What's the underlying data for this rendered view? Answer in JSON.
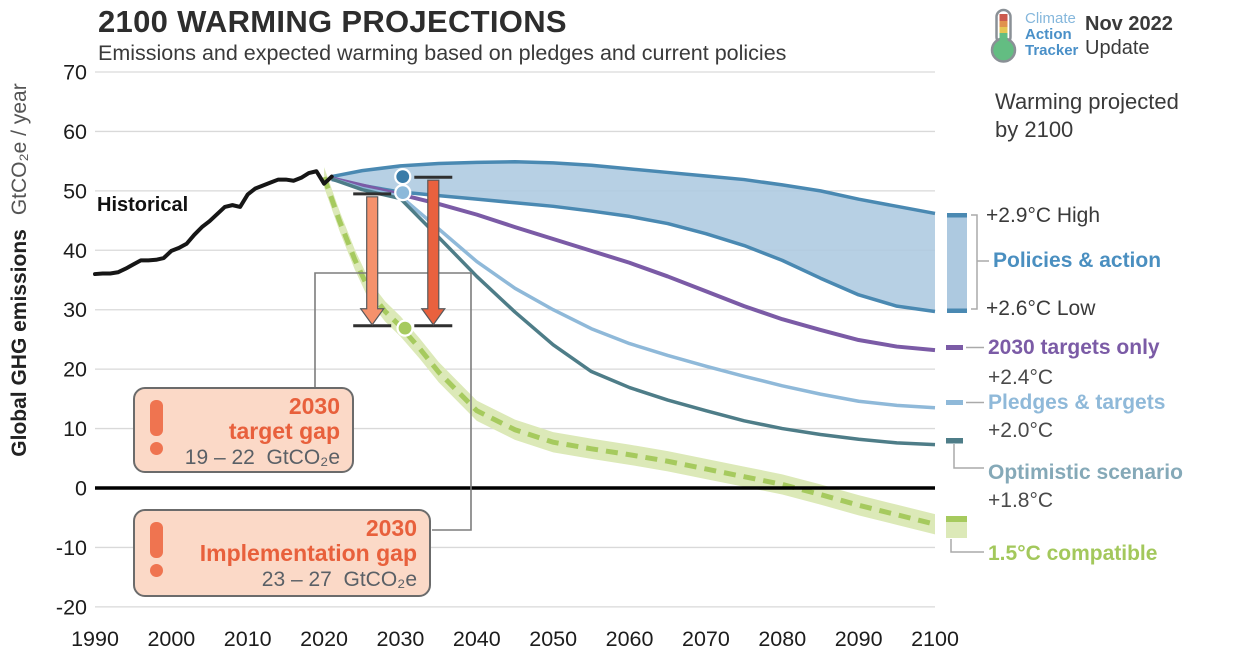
{
  "header": {
    "title": "2100 WARMING PROJECTIONS",
    "subtitle": "Emissions and expected warming based on pledges and current policies",
    "logo": {
      "line1": "Climate",
      "line2": "Action",
      "line3": "Tracker"
    },
    "update_line1": "Nov 2022",
    "update_line2": "Update"
  },
  "axes": {
    "y_label_bold": "Global GHG emissions",
    "y_label_unit": "GtCO₂e / year",
    "y_ticks": [
      70,
      60,
      50,
      40,
      30,
      20,
      10,
      0,
      -10,
      -20
    ],
    "x_ticks": [
      1990,
      2000,
      2010,
      2020,
      2030,
      2040,
      2050,
      2060,
      2070,
      2080,
      2090,
      2100
    ]
  },
  "plot_labels": {
    "historical": "Historical"
  },
  "annotations": {
    "target_gap": {
      "line1": "2030",
      "line2": "target gap",
      "value": "19 – 22  GtCO₂e"
    },
    "implementation_gap": {
      "line1": "2030",
      "line2": "Implementation gap",
      "value": "23 – 27  GtCO₂e"
    }
  },
  "legend": {
    "heading_line1": "Warming projected",
    "heading_line2": "by 2100",
    "high": "+2.9°C High",
    "policies": "Policies & action",
    "low": "+2.6°C Low",
    "targets2030": "2030 targets only",
    "targets2030_temp": "+2.4°C",
    "pledges": "Pledges & targets",
    "pledges_temp": "+2.0°C",
    "optimistic": "Optimistic scenario",
    "optimistic_temp": "+1.8°C",
    "compatible": "1.5°C compatible"
  },
  "colors": {
    "grid": "#d9d9d9",
    "zero_line": "#000000",
    "tick_text": "#1c1c1c",
    "historical": "#161616",
    "policies_band_fill": "#adc9e0",
    "policies_edge": "#4a89b2",
    "targets2030": "#7b5ba6",
    "pledges": "#8fb9d9",
    "optimistic": "#4e7d88",
    "green_line": "#a6ca5e",
    "green_band": "#dce9b8",
    "arrow_target": "#f5916c",
    "arrow_implementation": "#e9613e",
    "arrow_outline": "#58585a",
    "cap": "#2f2f2f",
    "connector": "#7d7d7d",
    "legend_gray": "#aaaaaa",
    "dot_policies_high": "#3a7ca8",
    "dot_policies_low": "#8cb9da",
    "dot_green": "#a6ca5e"
  },
  "chart_data": {
    "type": "line",
    "title": "2100 WARMING PROJECTIONS",
    "subtitle": "Emissions and expected warming based on pledges and current policies",
    "xlabel": "",
    "ylabel": "Global GHG emissions GtCO₂e / year",
    "xlim": [
      1990,
      2100
    ],
    "ylim": [
      -20,
      70
    ],
    "grid": true,
    "series": [
      {
        "name": "Historical",
        "role": "historical",
        "points": [
          [
            1990,
            36
          ],
          [
            1991,
            36.1
          ],
          [
            1992,
            36.1
          ],
          [
            1993,
            36.3
          ],
          [
            1994,
            36.9
          ],
          [
            1995,
            37.6
          ],
          [
            1996,
            38.3
          ],
          [
            1997,
            38.3
          ],
          [
            1998,
            38.4
          ],
          [
            1999,
            38.7
          ],
          [
            2000,
            39.9
          ],
          [
            2001,
            40.4
          ],
          [
            2002,
            41.1
          ],
          [
            2003,
            42.6
          ],
          [
            2004,
            43.9
          ],
          [
            2005,
            44.9
          ],
          [
            2006,
            46.1
          ],
          [
            2007,
            47.3
          ],
          [
            2008,
            47.6
          ],
          [
            2009,
            47.3
          ],
          [
            2010,
            49.4
          ],
          [
            2011,
            50.4
          ],
          [
            2012,
            50.9
          ],
          [
            2013,
            51.4
          ],
          [
            2014,
            51.9
          ],
          [
            2015,
            51.9
          ],
          [
            2016,
            51.7
          ],
          [
            2017,
            52.2
          ],
          [
            2018,
            53.0
          ],
          [
            2019,
            53.3
          ],
          [
            2020,
            51.2
          ],
          [
            2021,
            52.4
          ]
        ]
      },
      {
        "name": "Policies & action (high, +2.9°C)",
        "role": "band_high",
        "points": [
          [
            2021,
            52.4
          ],
          [
            2025,
            53.4
          ],
          [
            2030,
            54.2
          ],
          [
            2035,
            54.6
          ],
          [
            2040,
            54.8
          ],
          [
            2045,
            54.9
          ],
          [
            2050,
            54.7
          ],
          [
            2055,
            54.3
          ],
          [
            2060,
            53.7
          ],
          [
            2065,
            53.1
          ],
          [
            2070,
            52.5
          ],
          [
            2075,
            51.9
          ],
          [
            2080,
            51.0
          ],
          [
            2085,
            50.0
          ],
          [
            2090,
            48.6
          ],
          [
            2095,
            47.4
          ],
          [
            2100,
            46.2
          ]
        ]
      },
      {
        "name": "Policies & action (low, +2.6°C)",
        "role": "band_low",
        "points": [
          [
            2021,
            51.9
          ],
          [
            2025,
            50.9
          ],
          [
            2030,
            49.8
          ],
          [
            2035,
            49.2
          ],
          [
            2040,
            48.6
          ],
          [
            2045,
            48.0
          ],
          [
            2050,
            47.4
          ],
          [
            2055,
            46.6
          ],
          [
            2060,
            45.7
          ],
          [
            2065,
            44.5
          ],
          [
            2070,
            42.8
          ],
          [
            2075,
            40.8
          ],
          [
            2080,
            38.3
          ],
          [
            2085,
            35.3
          ],
          [
            2090,
            32.5
          ],
          [
            2095,
            30.6
          ],
          [
            2100,
            29.7
          ]
        ]
      },
      {
        "name": "2030 targets only (+2.4°C)",
        "role": "targets2030",
        "points": [
          [
            2021,
            52.1
          ],
          [
            2025,
            50.9
          ],
          [
            2030,
            49.4
          ],
          [
            2035,
            47.8
          ],
          [
            2040,
            46.0
          ],
          [
            2045,
            43.9
          ],
          [
            2050,
            41.9
          ],
          [
            2055,
            39.9
          ],
          [
            2060,
            37.9
          ],
          [
            2065,
            35.6
          ],
          [
            2070,
            33.1
          ],
          [
            2075,
            30.6
          ],
          [
            2080,
            28.4
          ],
          [
            2085,
            26.6
          ],
          [
            2090,
            24.9
          ],
          [
            2095,
            23.8
          ],
          [
            2100,
            23.2
          ]
        ]
      },
      {
        "name": "Pledges & targets (+2.0°C)",
        "role": "pledges",
        "points": [
          [
            2021,
            52.0
          ],
          [
            2025,
            50.4
          ],
          [
            2030,
            49.1
          ],
          [
            2035,
            43.6
          ],
          [
            2040,
            38.1
          ],
          [
            2045,
            33.6
          ],
          [
            2050,
            30.0
          ],
          [
            2055,
            26.8
          ],
          [
            2060,
            24.3
          ],
          [
            2065,
            22.3
          ],
          [
            2070,
            20.5
          ],
          [
            2075,
            18.8
          ],
          [
            2080,
            17.2
          ],
          [
            2085,
            15.8
          ],
          [
            2090,
            14.6
          ],
          [
            2095,
            13.9
          ],
          [
            2100,
            13.5
          ]
        ]
      },
      {
        "name": "Optimistic scenario (+1.8°C)",
        "role": "optimistic",
        "points": [
          [
            2021,
            52.0
          ],
          [
            2025,
            50.2
          ],
          [
            2030,
            48.7
          ],
          [
            2035,
            42.2
          ],
          [
            2040,
            35.6
          ],
          [
            2045,
            29.6
          ],
          [
            2050,
            24.1
          ],
          [
            2055,
            19.6
          ],
          [
            2060,
            16.9
          ],
          [
            2065,
            14.8
          ],
          [
            2070,
            13.0
          ],
          [
            2075,
            11.3
          ],
          [
            2080,
            10.0
          ],
          [
            2085,
            9.0
          ],
          [
            2090,
            8.2
          ],
          [
            2095,
            7.6
          ],
          [
            2100,
            7.3
          ]
        ]
      },
      {
        "name": "1.5°C compatible",
        "role": "green_center",
        "band_halfwidth": 1.7,
        "points": [
          [
            2020,
            52.3
          ],
          [
            2022,
            45.0
          ],
          [
            2024,
            38.5
          ],
          [
            2026,
            33.0
          ],
          [
            2028,
            29.7
          ],
          [
            2030,
            27.2
          ],
          [
            2032.5,
            23.5
          ],
          [
            2035,
            19.5
          ],
          [
            2040,
            13.0
          ],
          [
            2045,
            9.8
          ],
          [
            2050,
            7.7
          ],
          [
            2055,
            6.6
          ],
          [
            2060,
            5.6
          ],
          [
            2065,
            4.5
          ],
          [
            2070,
            3.2
          ],
          [
            2075,
            1.9
          ],
          [
            2080,
            0.6
          ],
          [
            2085,
            -1.1
          ],
          [
            2090,
            -2.9
          ],
          [
            2095,
            -4.5
          ],
          [
            2100,
            -6.1
          ]
        ]
      }
    ],
    "markers": [
      {
        "name": "policies-high-2030-dot",
        "year": 2030.3,
        "value": 52.4,
        "color_key": "dot_policies_high"
      },
      {
        "name": "policies-low-2030-dot",
        "year": 2030.3,
        "value": 49.7,
        "color_key": "dot_policies_low"
      },
      {
        "name": "one-point-five-2030-dot",
        "year": 2030.6,
        "value": 26.9,
        "color_key": "dot_green"
      }
    ],
    "gap_arrows": [
      {
        "name": "target-gap-arrow",
        "year": 2026.3,
        "from": 49.5,
        "to": 27.3,
        "color_key": "arrow_target"
      },
      {
        "name": "implementation-gap-arrow",
        "year": 2034.3,
        "from": 52.3,
        "to": 27.3,
        "color_key": "arrow_implementation"
      }
    ]
  }
}
